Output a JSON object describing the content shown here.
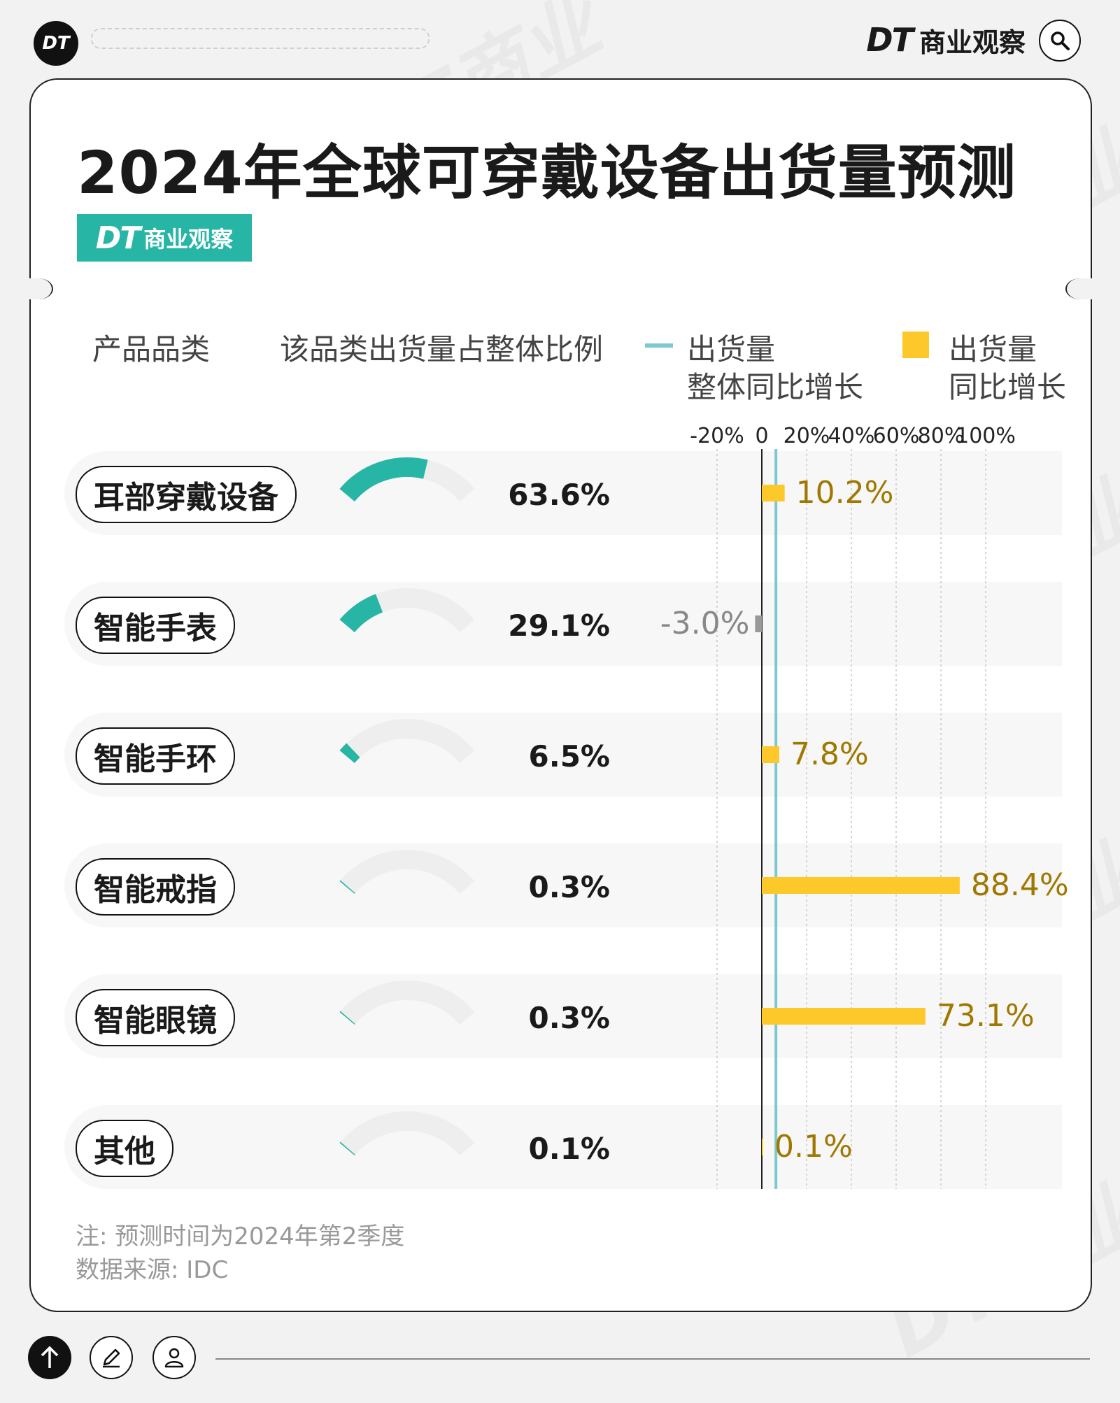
{
  "header": {
    "logo_text": "DT",
    "brand_dt": "DT",
    "brand_cn": "商业观察",
    "search_icon": "search-icon"
  },
  "card": {
    "title": "2024年全球可穿戴设备出货量预测",
    "badge_dt": "DT",
    "badge_cn": "商业观察"
  },
  "columns": {
    "category": "产品品类",
    "share": "该品类出货量占整体比例",
    "overall_legend_line1": "出货量",
    "overall_legend_line2": "整体同比增长",
    "growth_legend_line1": "出货量",
    "growth_legend_line2": "同比增长"
  },
  "colors": {
    "teal": "#27b5a5",
    "gauge_track": "#eeeeee",
    "bar_yellow": "#fcc82a",
    "bar_negative": "#999999",
    "label_gold": "#a07800",
    "label_gray": "#888888",
    "overall_line": "#7ec8d2"
  },
  "chart_data": {
    "type": "bar",
    "categories": [
      "耳部穿戴设备",
      "智能手表",
      "智能手环",
      "智能戒指",
      "智能眼镜",
      "其他"
    ],
    "share_labels": [
      "63.6%",
      "29.1%",
      "6.5%",
      "0.3%",
      "0.3%",
      "0.1%"
    ],
    "share_values": [
      63.6,
      29.1,
      6.5,
      0.3,
      0.3,
      0.1
    ],
    "growth_labels": [
      "10.2%",
      "-3.0%",
      "7.8%",
      "88.4%",
      "73.1%",
      "0.1%"
    ],
    "growth_values": [
      10.2,
      -3.0,
      7.8,
      88.4,
      73.1,
      0.1
    ],
    "overall_growth": 6.3,
    "x_ticks": [
      "-20%",
      "0",
      "20%",
      "40%",
      "60%",
      "80%",
      "100%"
    ],
    "x_tick_values": [
      -20,
      0,
      20,
      40,
      60,
      80,
      100
    ],
    "xlim": [
      -20,
      100
    ]
  },
  "notes": {
    "note": "注: 预测时间为2024年第2季度",
    "source": "数据来源: IDC"
  }
}
